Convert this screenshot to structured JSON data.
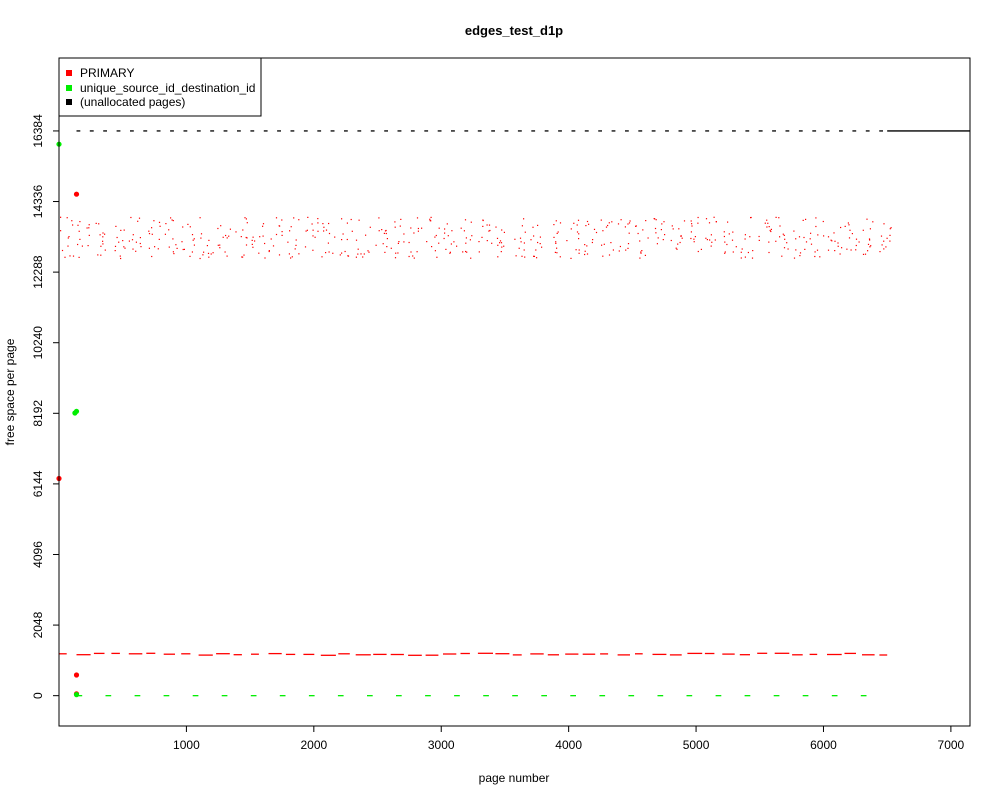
{
  "chart_data": {
    "type": "scatter",
    "title": "edges_test_d1p",
    "xlabel": "page number",
    "ylabel": "free space per page",
    "xlim": [
      0,
      7150
    ],
    "ylim": [
      -880,
      18500
    ],
    "x_ticks": [
      1000,
      2000,
      3000,
      4000,
      5000,
      6000,
      7000
    ],
    "y_ticks": [
      0,
      2048,
      4096,
      6144,
      8192,
      10240,
      12288,
      14336,
      16384
    ],
    "grid": false,
    "legend_position": "top-left",
    "legend": [
      {
        "label": "PRIMARY",
        "color": "#ff0000"
      },
      {
        "label": "unique_source_id_destination_id",
        "color": "#00ee00"
      },
      {
        "label": "(unallocated pages)",
        "color": "#000000"
      }
    ],
    "series": [
      {
        "name": "PRIMARY",
        "color": "#ff0000",
        "x_range": [
          0,
          6500
        ],
        "y_leaf_range": [
          12700,
          13900
        ],
        "y_internal": 1200,
        "outliers": [
          {
            "x": 137,
            "y": 14550
          },
          {
            "x": 137,
            "y": 600
          },
          {
            "x": 137,
            "y": 50
          },
          {
            "x": 0,
            "y": 6300
          }
        ]
      },
      {
        "name": "unique_source_id_destination_id",
        "color": "#00ee00",
        "x_range": [
          0,
          6380
        ],
        "y_internal": 0,
        "outliers": [
          {
            "x": 0,
            "y": 16000
          },
          {
            "x": 137,
            "y": 8250
          },
          {
            "x": 125,
            "y": 8200
          },
          {
            "x": 137,
            "y": 30
          }
        ]
      },
      {
        "name": "(unallocated pages)",
        "color": "#000000",
        "x_range": [
          137,
          7150
        ],
        "y": 16384,
        "solid_from_x": 6500
      }
    ]
  }
}
